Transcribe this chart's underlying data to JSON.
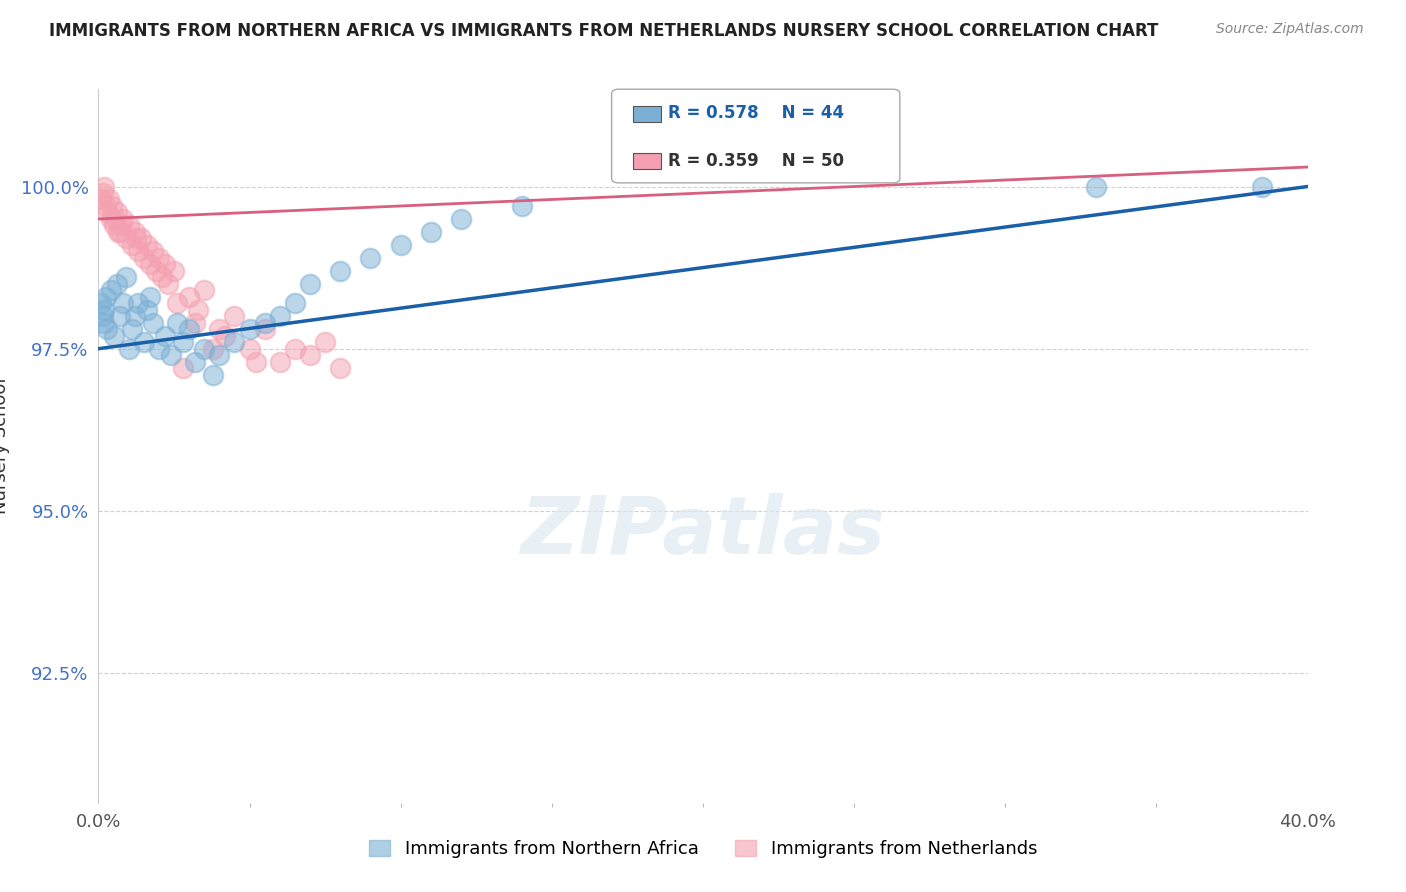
{
  "title": "IMMIGRANTS FROM NORTHERN AFRICA VS IMMIGRANTS FROM NETHERLANDS NURSERY SCHOOL CORRELATION CHART",
  "source": "Source: ZipAtlas.com",
  "ylabel": "Nursery School",
  "y_ticks_labels": [
    "92.5%",
    "95.0%",
    "97.5%",
    "100.0%"
  ],
  "y_tick_vals": [
    92.5,
    95.0,
    97.5,
    100.0
  ],
  "xlim": [
    0.0,
    40.0
  ],
  "ylim": [
    90.5,
    101.5
  ],
  "legend_blue_r": "R = 0.578",
  "legend_blue_n": "N = 44",
  "legend_pink_r": "R = 0.359",
  "legend_pink_n": "N = 50",
  "blue_color": "#7bafd4",
  "pink_color": "#f4a0b0",
  "blue_line_color": "#1a5fa8",
  "pink_line_color": "#d95f7f",
  "blue_scatter_x": [
    0.1,
    0.15,
    0.2,
    0.2,
    0.25,
    0.3,
    0.4,
    0.5,
    0.6,
    0.7,
    0.8,
    0.9,
    1.0,
    1.1,
    1.2,
    1.3,
    1.5,
    1.6,
    1.7,
    1.8,
    2.0,
    2.2,
    2.4,
    2.6,
    2.8,
    3.0,
    3.2,
    3.5,
    3.8,
    4.0,
    4.5,
    5.0,
    5.5,
    6.0,
    6.5,
    7.0,
    8.0,
    9.0,
    10.0,
    11.0,
    12.0,
    14.0,
    33.0,
    38.5
  ],
  "blue_scatter_y": [
    98.2,
    98.0,
    98.1,
    97.9,
    98.3,
    97.8,
    98.4,
    97.7,
    98.5,
    98.0,
    98.2,
    98.6,
    97.5,
    97.8,
    98.0,
    98.2,
    97.6,
    98.1,
    98.3,
    97.9,
    97.5,
    97.7,
    97.4,
    97.9,
    97.6,
    97.8,
    97.3,
    97.5,
    97.1,
    97.4,
    97.6,
    97.8,
    97.9,
    98.0,
    98.2,
    98.5,
    98.7,
    98.9,
    99.1,
    99.3,
    99.5,
    99.7,
    100.0,
    100.0
  ],
  "pink_scatter_x": [
    0.1,
    0.15,
    0.2,
    0.25,
    0.3,
    0.35,
    0.4,
    0.45,
    0.5,
    0.6,
    0.7,
    0.8,
    0.9,
    1.0,
    1.1,
    1.2,
    1.3,
    1.4,
    1.5,
    1.6,
    1.7,
    1.8,
    1.9,
    2.0,
    2.1,
    2.2,
    2.3,
    2.5,
    2.8,
    3.0,
    3.3,
    3.5,
    4.0,
    4.5,
    5.0,
    5.5,
    6.0,
    6.5,
    7.0,
    7.5,
    8.0,
    3.8,
    4.2,
    5.2,
    2.6,
    3.2,
    0.55,
    0.65,
    0.75,
    1.25
  ],
  "pink_scatter_y": [
    99.8,
    99.9,
    100.0,
    99.7,
    99.6,
    99.8,
    99.5,
    99.7,
    99.4,
    99.6,
    99.3,
    99.5,
    99.2,
    99.4,
    99.1,
    99.3,
    99.0,
    99.2,
    98.9,
    99.1,
    98.8,
    99.0,
    98.7,
    98.9,
    98.6,
    98.8,
    98.5,
    98.7,
    97.2,
    98.3,
    98.1,
    98.4,
    97.8,
    98.0,
    97.5,
    97.8,
    97.3,
    97.5,
    97.4,
    97.6,
    97.2,
    97.5,
    97.7,
    97.3,
    98.2,
    97.9,
    99.5,
    99.3,
    99.4,
    99.2
  ]
}
